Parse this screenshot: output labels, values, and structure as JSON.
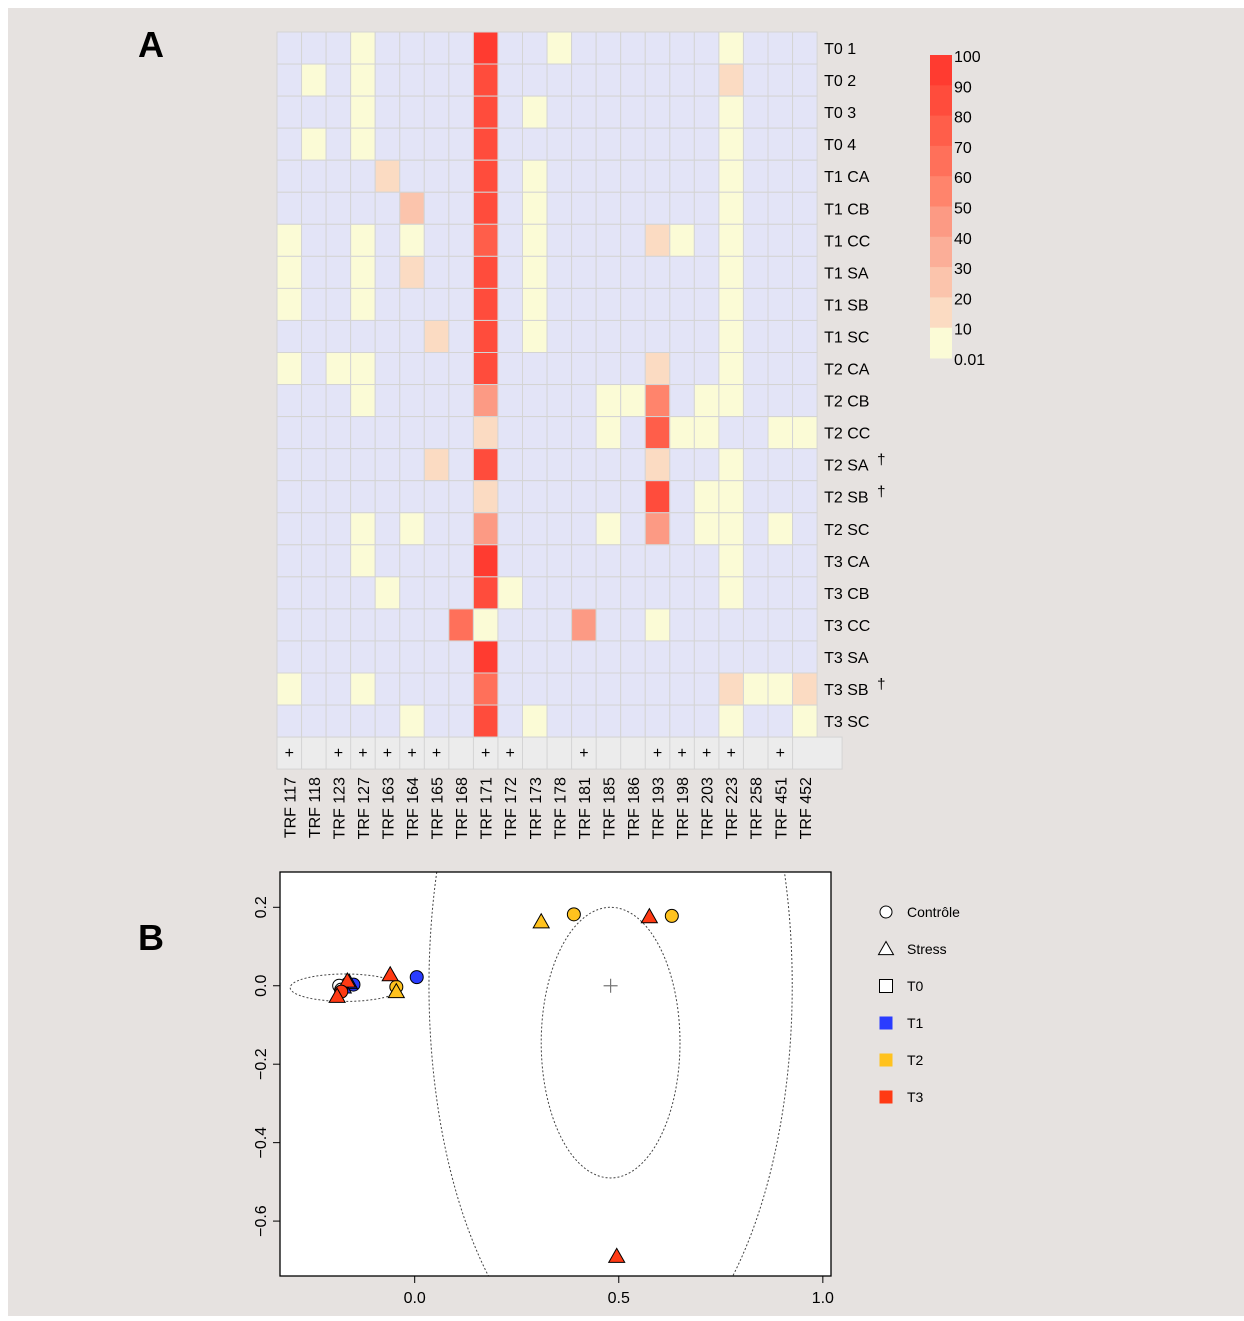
{
  "panel_labels": {
    "a": "A",
    "b": "B"
  },
  "colors": {
    "background": "#e6e2e0",
    "absent_cell": "#e3e4f7",
    "grid_line": "#d4d4d4",
    "scale": [
      {
        "label": "100",
        "color": "#ff3b30"
      },
      {
        "label": "90",
        "color": "#ff4c3c"
      },
      {
        "label": "80",
        "color": "#ff5e4a"
      },
      {
        "label": "70",
        "color": "#ff705a"
      },
      {
        "label": "60",
        "color": "#ff846c"
      },
      {
        "label": "50",
        "color": "#fc9a84"
      },
      {
        "label": "40",
        "color": "#fbae98"
      },
      {
        "label": "30",
        "color": "#fbc4ac"
      },
      {
        "label": "20",
        "color": "#fbdbc2"
      },
      {
        "label": "10",
        "color": "#fbfbd6"
      },
      {
        "label": "0.01",
        "color": ""
      }
    ]
  },
  "chart_data": [
    {
      "type": "heatmap",
      "title": "",
      "columns": [
        "TRF 117",
        "TRF 118",
        "TRF 123",
        "TRF 127",
        "TRF 163",
        "TRF 164",
        "TRF 165",
        "TRF 168",
        "TRF 171",
        "TRF 172",
        "TRF 173",
        "TRF 178",
        "TRF 181",
        "TRF 185",
        "TRF 186",
        "TRF 193",
        "TRF 198",
        "TRF 203",
        "TRF 223",
        "TRF 258",
        "TRF 451",
        "TRF 452"
      ],
      "rows": [
        "T0 1",
        "T0 2",
        "T0 3",
        "T0 4",
        "T1 CA",
        "T1 CB",
        "T1 CC",
        "T1 SA",
        "T1 SB",
        "T1 SC",
        "T2 CA",
        "T2 CB",
        "T2 CC",
        "T2 SA",
        "T2 SB",
        "T2 SC",
        "T3 CA",
        "T3 CB",
        "T3 CC",
        "T3 SA",
        "T3 SB",
        "T3 SC"
      ],
      "row_markers": [
        "",
        "",
        "",
        "",
        "",
        "",
        "",
        "",
        "",
        "",
        "",
        "",
        "",
        "†",
        "†",
        "",
        "",
        "",
        "",
        "",
        "†",
        ""
      ],
      "plus_markers": [
        "+",
        "",
        "+",
        "+",
        "+",
        "+",
        "+",
        "",
        "+",
        "+",
        "",
        "",
        "+",
        "",
        "",
        "+",
        "+",
        "+",
        "+",
        "",
        "+",
        ""
      ],
      "values": [
        [
          0,
          0,
          0,
          5,
          0,
          0,
          0,
          0,
          92,
          0,
          0,
          5,
          0,
          0,
          0,
          0,
          0,
          0,
          5,
          0,
          0,
          0
        ],
        [
          0,
          5,
          0,
          5,
          0,
          0,
          0,
          0,
          90,
          0,
          0,
          0,
          0,
          0,
          0,
          0,
          0,
          0,
          15,
          0,
          0,
          0
        ],
        [
          0,
          0,
          0,
          5,
          0,
          0,
          0,
          0,
          90,
          0,
          5,
          0,
          0,
          0,
          0,
          0,
          0,
          0,
          5,
          0,
          0,
          0
        ],
        [
          0,
          5,
          0,
          5,
          0,
          0,
          0,
          0,
          90,
          0,
          0,
          0,
          0,
          0,
          0,
          0,
          0,
          0,
          5,
          0,
          0,
          0
        ],
        [
          0,
          0,
          0,
          0,
          15,
          0,
          0,
          0,
          90,
          0,
          5,
          0,
          0,
          0,
          0,
          0,
          0,
          0,
          5,
          0,
          0,
          0
        ],
        [
          0,
          0,
          0,
          0,
          0,
          25,
          0,
          0,
          85,
          0,
          5,
          0,
          0,
          0,
          0,
          0,
          0,
          0,
          5,
          0,
          0,
          0
        ],
        [
          5,
          0,
          0,
          5,
          0,
          5,
          0,
          0,
          75,
          0,
          5,
          0,
          0,
          0,
          0,
          15,
          5,
          0,
          5,
          0,
          0,
          0
        ],
        [
          5,
          0,
          0,
          5,
          0,
          15,
          0,
          0,
          85,
          0,
          5,
          0,
          0,
          0,
          0,
          0,
          0,
          0,
          5,
          0,
          0,
          0
        ],
        [
          5,
          0,
          0,
          5,
          0,
          0,
          0,
          0,
          90,
          0,
          5,
          0,
          0,
          0,
          0,
          0,
          0,
          0,
          5,
          0,
          0,
          0
        ],
        [
          0,
          0,
          0,
          0,
          0,
          0,
          15,
          0,
          85,
          0,
          5,
          0,
          0,
          0,
          0,
          0,
          0,
          0,
          5,
          0,
          0,
          0
        ],
        [
          5,
          0,
          5,
          5,
          0,
          0,
          0,
          0,
          85,
          0,
          0,
          0,
          0,
          0,
          0,
          15,
          0,
          0,
          5,
          0,
          0,
          0
        ],
        [
          0,
          0,
          0,
          5,
          0,
          0,
          0,
          0,
          45,
          0,
          0,
          0,
          0,
          5,
          5,
          55,
          0,
          5,
          5,
          0,
          0,
          0
        ],
        [
          0,
          0,
          0,
          0,
          0,
          0,
          0,
          0,
          20,
          0,
          0,
          0,
          0,
          5,
          0,
          75,
          5,
          5,
          0,
          0,
          5,
          5
        ],
        [
          0,
          0,
          0,
          0,
          0,
          0,
          15,
          0,
          85,
          0,
          0,
          0,
          0,
          0,
          0,
          15,
          0,
          0,
          5,
          0,
          0,
          0
        ],
        [
          0,
          0,
          0,
          0,
          0,
          0,
          0,
          0,
          20,
          0,
          0,
          0,
          0,
          0,
          0,
          85,
          0,
          5,
          5,
          0,
          0,
          0
        ],
        [
          0,
          0,
          0,
          5,
          0,
          5,
          0,
          0,
          50,
          0,
          0,
          0,
          0,
          5,
          0,
          45,
          0,
          5,
          5,
          0,
          5,
          0
        ],
        [
          0,
          0,
          0,
          5,
          0,
          0,
          0,
          0,
          100,
          0,
          0,
          0,
          0,
          0,
          0,
          0,
          0,
          0,
          5,
          0,
          0,
          0
        ],
        [
          0,
          0,
          0,
          0,
          5,
          0,
          0,
          0,
          90,
          5,
          0,
          0,
          0,
          0,
          0,
          0,
          0,
          0,
          5,
          0,
          0,
          0
        ],
        [
          0,
          0,
          0,
          0,
          0,
          0,
          0,
          65,
          5,
          0,
          0,
          0,
          45,
          0,
          0,
          5,
          0,
          0,
          0,
          0,
          0,
          0
        ],
        [
          0,
          0,
          0,
          0,
          0,
          0,
          0,
          0,
          95,
          0,
          0,
          0,
          0,
          0,
          0,
          0,
          0,
          0,
          0,
          0,
          0,
          0
        ],
        [
          5,
          0,
          0,
          5,
          0,
          0,
          0,
          0,
          70,
          0,
          0,
          0,
          0,
          0,
          0,
          0,
          0,
          0,
          15,
          5,
          5,
          15
        ],
        [
          0,
          0,
          0,
          0,
          0,
          5,
          0,
          0,
          90,
          0,
          5,
          0,
          0,
          0,
          0,
          0,
          0,
          0,
          5,
          0,
          0,
          5
        ]
      ]
    },
    {
      "type": "scatter",
      "title": "",
      "xlabel": "",
      "ylabel": "",
      "xlim": [
        -0.33,
        1.02
      ],
      "ylim": [
        -0.74,
        0.29
      ],
      "x_ticks": [
        {
          "v": 0.0,
          "label": "0.0"
        },
        {
          "v": 0.5,
          "label": "0.5"
        },
        {
          "v": 1.0,
          "label": "1.0"
        }
      ],
      "y_ticks": [
        {
          "v": 0.2,
          "label": "0.2"
        },
        {
          "v": 0.0,
          "label": "0.0"
        },
        {
          "v": -0.2,
          "label": "−0.2"
        },
        {
          "v": -0.4,
          "label": "−0.4"
        },
        {
          "v": -0.6,
          "label": "−0.6"
        }
      ],
      "legend": [
        {
          "label": "Contrôle",
          "shape": "circle",
          "color": "#ffffff"
        },
        {
          "label": "Stress",
          "shape": "triangle",
          "color": "#ffffff"
        },
        {
          "label": "T0",
          "shape": "square",
          "color": "#ffffff"
        },
        {
          "label": "T1",
          "shape": "square",
          "color": "#2a3cff"
        },
        {
          "label": "T2",
          "shape": "square",
          "color": "#ffc21e"
        },
        {
          "label": "T3",
          "shape": "square",
          "color": "#ff3a14"
        }
      ],
      "centroid": {
        "x": 0.48,
        "y": 0.0
      },
      "ellipses": [
        {
          "cx": -0.17,
          "cy": -0.005,
          "rx": 0.135,
          "ry": 0.035
        },
        {
          "cx": 0.48,
          "cy": -0.145,
          "rx": 0.17,
          "ry": 0.345
        },
        {
          "cx": 0.48,
          "cy": 0.0,
          "rx": 0.445,
          "ry": 1.0
        }
      ],
      "points": [
        {
          "x": 0.005,
          "y": 0.022,
          "shape": "circle",
          "color": "#2a3cff"
        },
        {
          "x": -0.15,
          "y": 0.003,
          "shape": "circle",
          "color": "#2a3cff"
        },
        {
          "x": -0.16,
          "y": 0.008,
          "shape": "triangle",
          "color": "#2a3cff"
        },
        {
          "x": -0.175,
          "y": -0.003,
          "shape": "triangle",
          "color": "#2a3cff"
        },
        {
          "x": -0.185,
          "y": 0.0,
          "shape": "circle",
          "color": "#ffffff"
        },
        {
          "x": -0.18,
          "y": -0.01,
          "shape": "circle",
          "color": "#ffffff"
        },
        {
          "x": -0.045,
          "y": -0.003,
          "shape": "circle",
          "color": "#ffc21e"
        },
        {
          "x": -0.045,
          "y": -0.015,
          "shape": "triangle",
          "color": "#ffc21e"
        },
        {
          "x": 0.31,
          "y": 0.163,
          "shape": "triangle",
          "color": "#ffc21e"
        },
        {
          "x": 0.39,
          "y": 0.182,
          "shape": "circle",
          "color": "#ffc21e"
        },
        {
          "x": 0.63,
          "y": 0.178,
          "shape": "circle",
          "color": "#ffc21e"
        },
        {
          "x": 0.575,
          "y": 0.176,
          "shape": "triangle",
          "color": "#ff3a14"
        },
        {
          "x": -0.06,
          "y": 0.028,
          "shape": "triangle",
          "color": "#ff3a14"
        },
        {
          "x": -0.165,
          "y": 0.012,
          "shape": "triangle",
          "color": "#ff3a14"
        },
        {
          "x": -0.18,
          "y": -0.015,
          "shape": "circle",
          "color": "#ff3a14"
        },
        {
          "x": -0.19,
          "y": -0.027,
          "shape": "triangle",
          "color": "#ff3a14"
        },
        {
          "x": 0.495,
          "y": -0.69,
          "shape": "triangle",
          "color": "#ff3a14"
        }
      ]
    }
  ]
}
